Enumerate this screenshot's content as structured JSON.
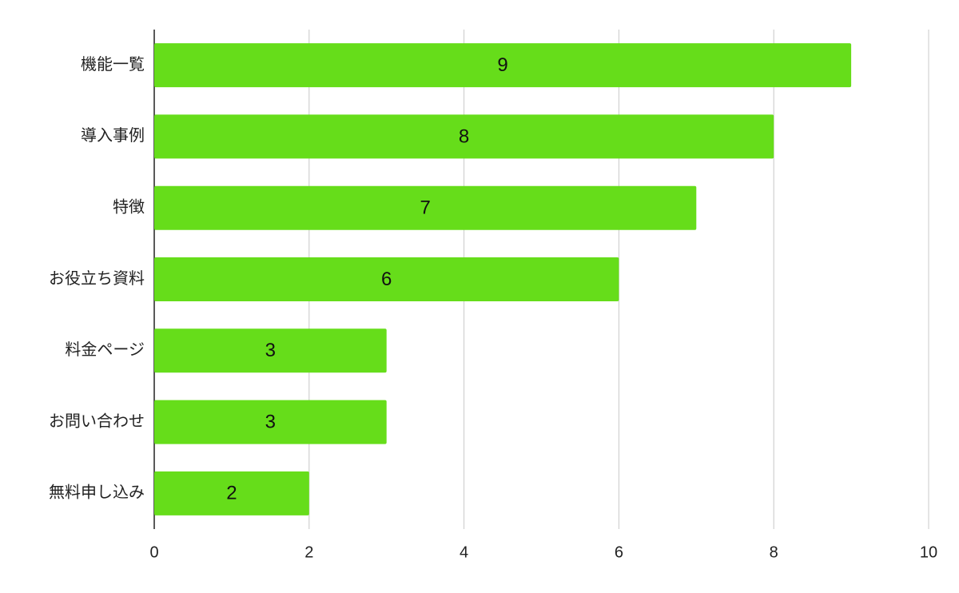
{
  "chart_data": {
    "type": "bar",
    "orientation": "horizontal",
    "categories": [
      "機能一覧",
      "導入事例",
      "特徴",
      "お役立ち資料",
      "料金ページ",
      "お問い合わせ",
      "無料申し込み"
    ],
    "values": [
      9,
      8,
      7,
      6,
      3,
      3,
      2
    ],
    "color": "#66dd1a",
    "xlim": [
      0,
      10
    ],
    "xticks": [
      0,
      2,
      4,
      6,
      8,
      10
    ],
    "grid": true,
    "value_labels_shown": true
  }
}
